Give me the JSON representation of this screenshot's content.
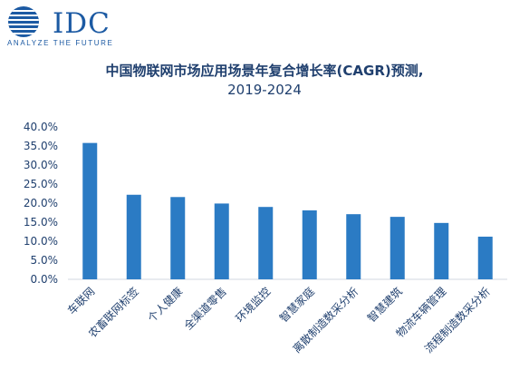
{
  "logo": {
    "name": "IDC",
    "tagline": "ANALYZE THE FUTURE",
    "brand_color": "#1c5aa3"
  },
  "chart_data": {
    "type": "bar",
    "title": "中国物联网市场应用场景年复合增长率(CAGR)预测,",
    "subtitle": "2019-2024",
    "categories": [
      "车联网",
      "农畜联网标签",
      "个人健康",
      "全渠道零售",
      "环境监控",
      "智慧家庭",
      "离散制造数采分析",
      "智慧建筑",
      "物流车辆管理",
      "流程制造数采分析"
    ],
    "values": [
      35.8,
      22.2,
      21.6,
      19.9,
      19.0,
      18.1,
      17.1,
      16.4,
      14.8,
      11.2
    ],
    "value_unit": "%",
    "ylim": [
      0,
      40
    ],
    "yticks": [
      "0.0%",
      "5.0%",
      "10.0%",
      "15.0%",
      "20.0%",
      "25.0%",
      "30.0%",
      "35.0%",
      "40.0%"
    ],
    "grid": false,
    "legend": "none",
    "bar_color": "#2b7bc4",
    "axis_color": "#d0d7e2"
  }
}
